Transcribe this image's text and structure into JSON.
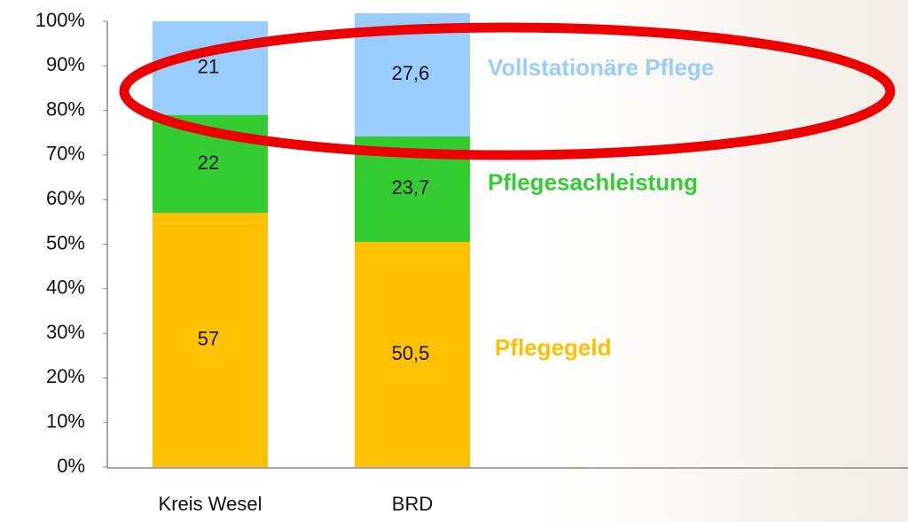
{
  "chart_data": {
    "type": "stacked_bar",
    "categories": [
      "Kreis Wesel",
      "BRD"
    ],
    "series": [
      {
        "name": "Pflegegeld",
        "color": "#ffc000",
        "values": [
          57,
          50.5
        ],
        "value_labels": [
          "57",
          "50,5"
        ]
      },
      {
        "name": "Pflegesachleistung",
        "color": "#33cc33",
        "values": [
          22,
          23.7
        ],
        "value_labels": [
          "22",
          "23,7"
        ]
      },
      {
        "name": "Vollstationäre Pflege",
        "color": "#99ccff",
        "values": [
          21,
          27.6
        ],
        "value_labels": [
          "21",
          "27,6"
        ]
      }
    ],
    "ylim": [
      0,
      100
    ],
    "yticks": [
      {
        "value": 0,
        "label": "0%"
      },
      {
        "value": 10,
        "label": "10%"
      },
      {
        "value": 20,
        "label": "20%"
      },
      {
        "value": 30,
        "label": "30%"
      },
      {
        "value": 40,
        "label": "40%"
      },
      {
        "value": 50,
        "label": "50%"
      },
      {
        "value": 60,
        "label": "60%"
      },
      {
        "value": 70,
        "label": "70%"
      },
      {
        "value": 80,
        "label": "80%"
      },
      {
        "value": 90,
        "label": "90%"
      },
      {
        "value": 100,
        "label": "100%"
      }
    ]
  }
}
